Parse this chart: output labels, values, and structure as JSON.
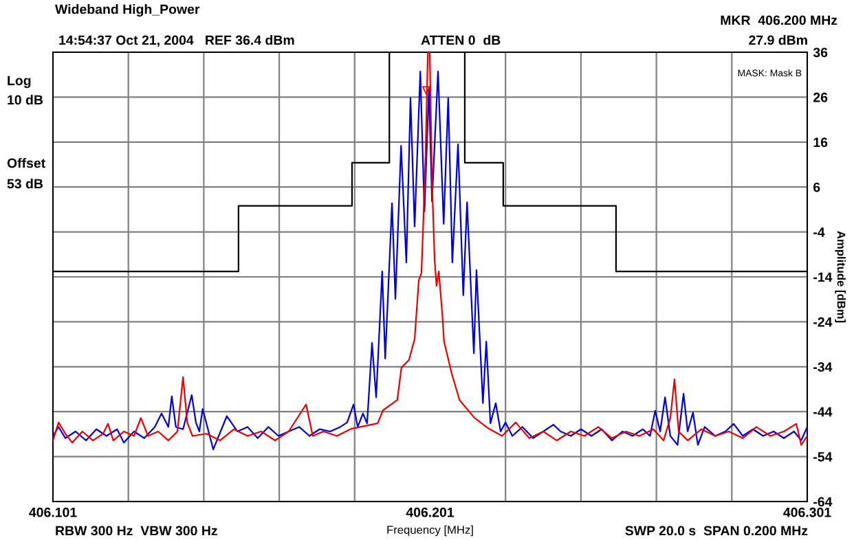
{
  "chart_data": {
    "type": "line",
    "title": "Wideband High_Power",
    "subtitle": "14:54:37 Oct 21, 2004   REF 36.4 dBm",
    "xlabel": "Frequency [MHz]",
    "ylabel": "Amplitude [dBm]",
    "annotations": [
      "ATTEN 0  dB",
      "MKR  406.200 MHz",
      "27.9 dBm",
      "Log",
      "10 dB",
      "Offset",
      "53 dB",
      "MASK: Mask B",
      "RBW 300 Hz  VBW 300 Hz",
      "SWP 20.0 s  SPAN 0.200 MHz"
    ],
    "xlim": [
      406.101,
      406.301
    ],
    "xticks": [
      406.101,
      406.201,
      406.301
    ],
    "ylim": [
      -63.6,
      36.4
    ],
    "yticks": [
      {
        "value": 36.4,
        "label": "36"
      },
      {
        "value": 26.4,
        "label": "26"
      },
      {
        "value": 16.4,
        "label": "16"
      },
      {
        "value": 6.4,
        "label": "6"
      },
      {
        "value": -3.6,
        "label": "-4"
      },
      {
        "value": -13.6,
        "label": "-14"
      },
      {
        "value": -23.6,
        "label": "-24"
      },
      {
        "value": -33.6,
        "label": "-34"
      },
      {
        "value": -43.6,
        "label": "-44"
      },
      {
        "value": -53.6,
        "label": "-54"
      },
      {
        "value": -63.6,
        "label": "-64"
      }
    ],
    "grid": true,
    "legend": false,
    "series": [
      {
        "type": "step",
        "color": "#000000",
        "x": [
          406.101,
          406.1502,
          406.1803,
          406.1902,
          406.2102,
          406.2204,
          406.2503,
          406.301
        ],
        "values": [
          -12.4,
          2.2,
          11.8,
          36.4,
          11.8,
          2.2,
          -12.4,
          -12.4
        ]
      },
      {
        "color": "#0000dd",
        "x": [
          406.101,
          406.1025,
          406.1043,
          406.107,
          406.1098,
          406.1125,
          406.1152,
          406.118,
          406.1198,
          406.1225,
          406.1252,
          406.128,
          406.1298,
          406.1316,
          406.1325,
          406.1336,
          406.1355,
          406.1378,
          406.1389,
          406.1398,
          406.1407,
          406.1435,
          406.1471,
          406.1499,
          406.1526,
          406.1553,
          406.1581,
          406.1608,
          406.1635,
          406.1663,
          406.169,
          406.1717,
          406.1745,
          406.1772,
          406.179,
          406.1807,
          406.1818,
          406.1832,
          406.1843,
          406.1856,
          406.1867,
          406.1883,
          406.1891,
          406.1909,
          406.1918,
          406.1933,
          406.1947,
          406.1958,
          406.1969,
          406.1984,
          406.1995,
          406.2007,
          406.2015,
          406.2031,
          406.2046,
          406.2058,
          406.2069,
          406.2084,
          406.2098,
          406.2108,
          406.2126,
          406.2133,
          406.215,
          406.2159,
          406.217,
          406.2184,
          406.2197,
          406.221,
          406.2228,
          406.2255,
          406.2283,
          406.231,
          406.2337,
          406.2356,
          406.2383,
          406.241,
          406.2438,
          406.2465,
          406.2492,
          406.252,
          406.2547,
          406.2574,
          406.2593,
          406.2607,
          406.262,
          406.2633,
          406.2647,
          406.2666,
          406.2682,
          406.2693,
          406.2707,
          406.272,
          406.2738,
          406.2766,
          406.2793,
          406.2815,
          406.2839,
          406.2866,
          406.2893,
          406.2921,
          406.2948,
          406.2975,
          406.2994,
          406.301
        ],
        "values": [
          -49,
          -47,
          -49.5,
          -48,
          -50,
          -47.5,
          -49,
          -47.5,
          -50.5,
          -48,
          -49.5,
          -47,
          -44,
          -47,
          -40.2,
          -47,
          -47.5,
          -39.9,
          -46,
          -48,
          -43,
          -52,
          -44.6,
          -48,
          -47,
          -49.5,
          -47,
          -49,
          -48,
          -47,
          -49,
          -47.5,
          -48,
          -47,
          -46,
          -42,
          -47,
          -44,
          -46.2,
          -28.3,
          -40.4,
          -12.4,
          -31.8,
          2.8,
          -18.5,
          15.6,
          -10.4,
          26.2,
          -2.4,
          32.1,
          0.9,
          28.4,
          3.2,
          32.1,
          -1.8,
          26.2,
          -10.4,
          15.9,
          -17.7,
          3,
          -30.6,
          -12.1,
          -41.7,
          -28,
          -46.2,
          -41.7,
          -48,
          -46,
          -49,
          -47,
          -49.5,
          -48,
          -46.5,
          -48,
          -49,
          -47.5,
          -49,
          -47.5,
          -50,
          -48,
          -49,
          -47.5,
          -49,
          -43.4,
          -48,
          -40.4,
          -49,
          -51,
          -39.6,
          -48,
          -43.8,
          -51,
          -47,
          -49,
          -48,
          -46.3,
          -49,
          -47.5,
          -49,
          -48,
          -49.5,
          -48,
          -50,
          -47
        ]
      },
      {
        "color": "#ee0000",
        "x": [
          406.101,
          406.1025,
          406.1043,
          406.1061,
          406.1088,
          406.1116,
          406.1143,
          406.1156,
          406.117,
          406.1198,
          406.1225,
          406.1243,
          406.1262,
          406.1289,
          406.1316,
          406.134,
          406.1355,
          406.1366,
          406.138,
          406.1417,
          406.1453,
          406.149,
          406.1526,
          406.1562,
          406.1599,
          406.1635,
          406.1681,
          406.1699,
          406.1727,
          406.1763,
          406.1801,
          406.1871,
          406.1885,
          406.1923,
          406.1934,
          406.1954,
          406.1969,
          406.198,
          406.1987,
          406.1991,
          406.1998,
          406.2004,
          406.2009,
          406.2015,
          406.2022,
          406.2027,
          406.2033,
          406.2042,
          406.2047,
          406.2067,
          406.2088,
          406.2128,
          406.2166,
          406.2201,
          406.2237,
          406.2273,
          406.231,
          406.2346,
          406.2383,
          406.2419,
          406.2456,
          406.2492,
          406.2529,
          406.2565,
          406.2602,
          406.2629,
          406.2647,
          406.2658,
          406.2669,
          406.2693,
          406.2729,
          406.2766,
          406.2802,
          406.2839,
          406.2875,
          406.2912,
          406.2948,
          406.2981,
          406.2994,
          406.301
        ],
        "values": [
          -50,
          -46,
          -48.5,
          -50.5,
          -48,
          -50,
          -48.5,
          -46.3,
          -50,
          -48,
          -49,
          -45,
          -49,
          -48,
          -50,
          -48,
          -35.9,
          -46,
          -49,
          -48.5,
          -50,
          -47.5,
          -49,
          -48,
          -50,
          -48,
          -42,
          -49,
          -48,
          -49,
          -47.4,
          -46.2,
          -43.3,
          -41,
          -33.8,
          -32.1,
          -27.4,
          -14.4,
          -12.7,
          -3.8,
          13.8,
          36.4,
          36.4,
          8,
          -9.8,
          -15.6,
          -12.4,
          -21.5,
          -28,
          -35,
          -41,
          -45,
          -47.4,
          -49,
          -46,
          -49.5,
          -48,
          -50,
          -48,
          -49,
          -47,
          -49.5,
          -48,
          -49,
          -47.5,
          -50,
          -45,
          -36.4,
          -48,
          -50,
          -47.5,
          -49,
          -48,
          -49.5,
          -47,
          -49,
          -48,
          -46.3,
          -51,
          -49
        ]
      },
      {
        "type": "scatter",
        "color": "#ee0000",
        "marker": "triangle",
        "x": [
          406.2
        ],
        "values": [
          27.9
        ]
      }
    ]
  }
}
